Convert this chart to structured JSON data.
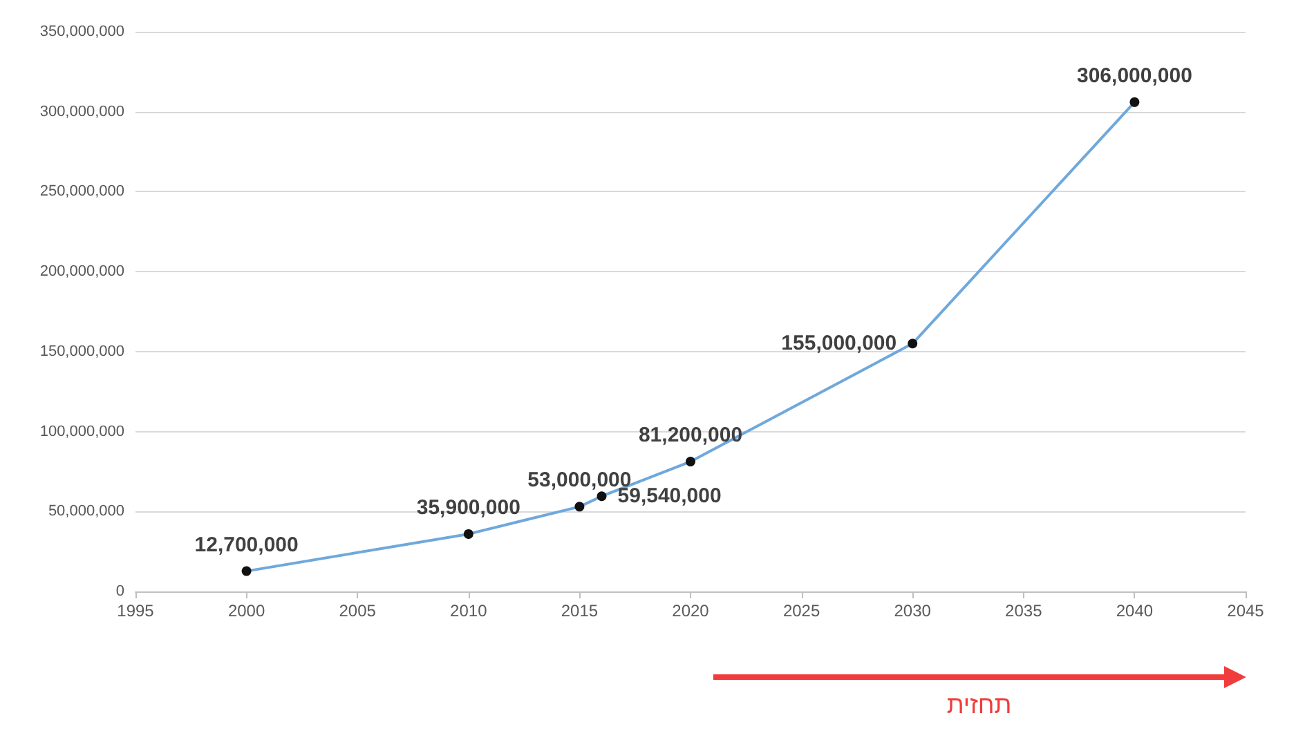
{
  "chart_data": {
    "type": "line",
    "x": [
      2000,
      2010,
      2015,
      2016,
      2020,
      2030,
      2040
    ],
    "series": [
      {
        "color": "#6fa8dc",
        "values": [
          12700000,
          35900000,
          53000000,
          59540000,
          81200000,
          155000000,
          306000000
        ],
        "value_labels": [
          "12,700,000",
          "35,900,000",
          "53,000,000",
          "59,540,000",
          "81,200,000",
          "155,000,000",
          "306,000,000"
        ]
      }
    ],
    "xlim": [
      1995,
      2045
    ],
    "xticks": [
      1995,
      2000,
      2005,
      2010,
      2015,
      2020,
      2025,
      2030,
      2035,
      2040,
      2045
    ],
    "ylim": [
      0,
      350000000
    ],
    "yticks": [
      {
        "value": 0,
        "label": "0"
      },
      {
        "value": 50000000,
        "label": "50,000,000"
      },
      {
        "value": 100000000,
        "label": "100,000,000"
      },
      {
        "value": 150000000,
        "label": "150,000,000"
      },
      {
        "value": 200000000,
        "label": "200,000,000"
      },
      {
        "value": 250000000,
        "label": "250,000,000"
      },
      {
        "value": 300000000,
        "label": "300,000,000"
      },
      {
        "value": 350000000,
        "label": "350,000,000"
      }
    ],
    "grid": "y",
    "marker": "circle",
    "line_style": "solid",
    "annotations": [
      "תחזית"
    ]
  }
}
